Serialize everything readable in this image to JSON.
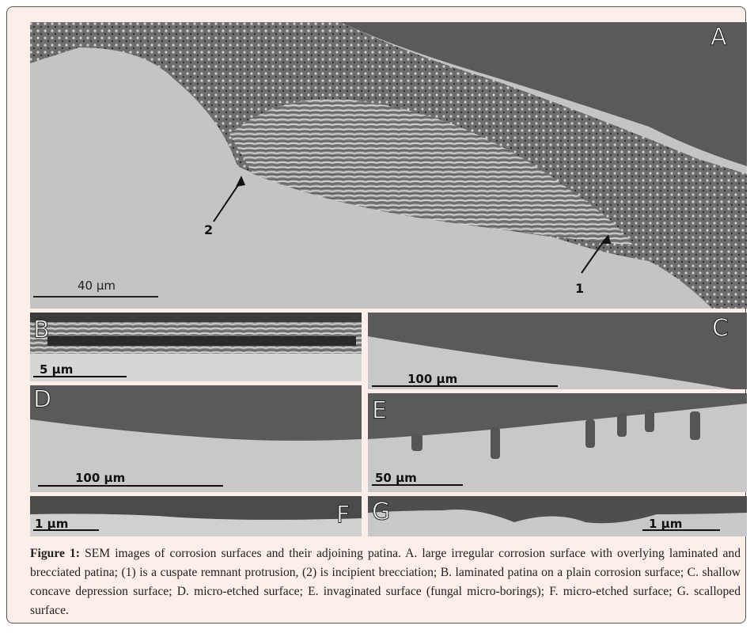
{
  "figure": {
    "panels": [
      {
        "letter": "A",
        "scale": "40 μm"
      },
      {
        "letter": "B",
        "scale": "5 μm"
      },
      {
        "letter": "C",
        "scale": "100 μm"
      },
      {
        "letter": "D",
        "scale": "100 μm"
      },
      {
        "letter": "E",
        "scale": "50 μm"
      },
      {
        "letter": "F",
        "scale": "1 μm"
      },
      {
        "letter": "G",
        "scale": "1 μm"
      }
    ],
    "arrows": [
      "1",
      "2"
    ]
  },
  "caption": {
    "label": "Figure 1:",
    "text": "SEM images of corrosion surfaces and their adjoining patina. A. large irregular corrosion surface with overlying laminated and brecciated patina; (1) is a cuspate remnant protrusion, (2) is incipient brecciation; B. laminated patina on a plain corrosion surface; C. shallow concave depression surface; D. micro-etched surface; E. invaginated surface (fungal micro-borings); F. micro-etched surface; G. scalloped surface."
  }
}
